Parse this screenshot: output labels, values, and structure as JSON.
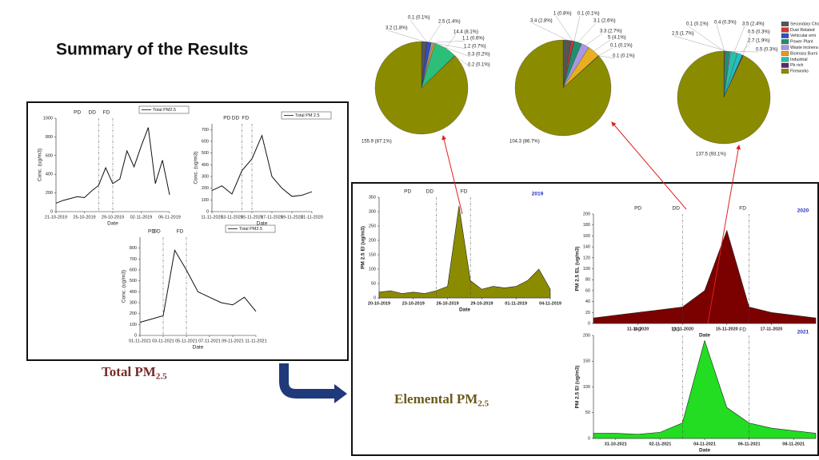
{
  "title": "Summary of the Results",
  "total_label": {
    "text": "Total PM",
    "sub": "2.5"
  },
  "elemental_label": {
    "text": "Elemental PM",
    "sub": "2.5"
  },
  "legend": {
    "items": [
      {
        "name": "Secondary Cho",
        "color": "#555555"
      },
      {
        "name": "Dust Related",
        "color": "#e03030"
      },
      {
        "name": "Vehicular emi",
        "color": "#3050c0"
      },
      {
        "name": "Power Plant",
        "color": "#1f8f6f"
      },
      {
        "name": "Waste incinera",
        "color": "#a898e0"
      },
      {
        "name": "Biomass Burni",
        "color": "#e89a20"
      },
      {
        "name": "Industrial",
        "color": "#2cbfa8"
      },
      {
        "name": "Pb rich",
        "color": "#5a2a6a"
      },
      {
        "name": "Fireworks",
        "color": "#8b8b00"
      }
    ]
  },
  "chart_data": [
    {
      "type": "pie",
      "values": [
        3.2,
        0.1,
        2.5,
        0.3,
        1.1,
        1.2,
        14.4,
        0.2,
        155.9
      ],
      "value_labels": [
        "3.2 (1.8%)",
        "0.1 (0.1%)",
        "2.5 (1.4%)",
        "0.3 (0.2%)",
        "1.1 (0.6%)",
        "1.2 (0.7%)",
        "14.4 (8.1%)",
        "0.2 (0.1%)",
        "155.9 (87.1%)"
      ],
      "colors": [
        "#555555",
        "#e03030",
        "#3050c0",
        "#1f8f6f",
        "#a898e0",
        "#e89a20",
        "#2cbf7a",
        "#5a2a6a",
        "#8b8b00"
      ]
    },
    {
      "type": "pie",
      "values": [
        3.4,
        1,
        0.1,
        3.1,
        3.3,
        5,
        0.1,
        0.1,
        104.3
      ],
      "value_labels": [
        "3.4 (2.8%)",
        "1 (0.8%)",
        "0.1 (0.1%)",
        "3.1 (2.6%)",
        "3.3 (2.7%)",
        "5 (4.1%)",
        "0.1 (0.1%)",
        "0.1 (0.1%)",
        "104.3 (86.7%)"
      ],
      "colors": [
        "#555555",
        "#e03030",
        "#3050c0",
        "#1f8f6f",
        "#a898e0",
        "#e8b020",
        "#2cbfa8",
        "#5a2a6a",
        "#8b8b00"
      ]
    },
    {
      "type": "pie",
      "values": [
        0.1,
        0.4,
        2.5,
        0.5,
        3.5,
        2.7,
        0.5,
        137.5
      ],
      "value_labels": [
        "0.1 (0.1%)",
        "0.4 (0.3%)",
        "2.5 (1.7%)",
        "0.5 (0.3%)",
        "3.5 (2.4%)",
        "2.7 (1.9%)",
        "0.5 (0.3%)",
        "137.5 (93.1%)"
      ],
      "colors": [
        "#555555",
        "#e03030",
        "#1f8f6f",
        "#a898e0",
        "#2cbfa8",
        "#20c0c0",
        "#5a2a6a",
        "#8b8b00"
      ]
    },
    {
      "type": "line",
      "name": "Total PM2.5",
      "color": "#111111",
      "x": [
        "21-10-2019",
        "22-10-2019",
        "23-10-2019",
        "24-10-2019",
        "25-10-2019",
        "26-10-2019",
        "27-10-2019",
        "28-10-2019",
        "29-10-2019",
        "30-10-2019",
        "31-10-2019",
        "01-11-2019",
        "02-11-2019",
        "03-11-2019",
        "04-11-2019",
        "05-11-2019",
        "06-11-2019"
      ],
      "values": [
        90,
        120,
        140,
        160,
        150,
        220,
        280,
        470,
        300,
        350,
        650,
        480,
        700,
        900,
        300,
        550,
        180
      ],
      "xticks": [
        "21-10-2019",
        "25-10-2019",
        "29-10-2019",
        "02-11-2019",
        "06-11-2019"
      ],
      "ylim": [
        0,
        1000
      ],
      "yticks": [
        0,
        200,
        400,
        600,
        800,
        1000
      ],
      "xlabel": "Date",
      "ylabel": "Conc. (ug/m3)",
      "annotations": [
        {
          "text": "PD"
        },
        {
          "text": "DD",
          "x": "27-10-2019"
        },
        {
          "text": "FD",
          "x": "29-10-2019"
        }
      ]
    },
    {
      "type": "line",
      "name": "Total PM 2.5",
      "color": "#111111",
      "x": [
        "11-11-2020",
        "12-11-2020",
        "13-11-2020",
        "14-11-2020",
        "15-11-2020",
        "16-11-2020",
        "17-11-2020",
        "18-11-2020",
        "19-11-2020",
        "20-11-2020",
        "21-11-2020"
      ],
      "values": [
        180,
        220,
        150,
        350,
        450,
        650,
        300,
        200,
        130,
        140,
        170
      ],
      "xticks": [
        "11-11-2020",
        "13-11-2020",
        "15-11-2020",
        "17-11-2020",
        "19-11-2020",
        "21-11-2020"
      ],
      "ylim": [
        0,
        750
      ],
      "yticks": [
        0,
        100,
        200,
        300,
        400,
        500,
        600,
        700
      ],
      "xlabel": "Date",
      "ylabel": "Conc. (ug/m3)",
      "annotations": [
        {
          "text": "PD"
        },
        {
          "text": "DD",
          "x": "14-11-2020"
        },
        {
          "text": "FD",
          "x": "15-11-2020"
        }
      ]
    },
    {
      "type": "line",
      "name": "Total PM2.5",
      "color": "#111111",
      "x": [
        "01-11-2021",
        "02-11-2021",
        "03-11-2021",
        "04-11-2021",
        "05-11-2021",
        "06-11-2021",
        "07-11-2021",
        "08-11-2021",
        "09-11-2021",
        "10-11-2021",
        "11-11-2021"
      ],
      "values": [
        120,
        150,
        180,
        780,
        600,
        400,
        350,
        300,
        280,
        350,
        220
      ],
      "xticks": [
        "01-11-2021",
        "03-11-2021",
        "05-11-2021",
        "07-11-2021",
        "09-11-2021",
        "11-11-2021"
      ],
      "ylim": [
        0,
        900
      ],
      "yticks": [
        0,
        100,
        200,
        300,
        400,
        500,
        600,
        700,
        800
      ],
      "xlabel": "Date",
      "ylabel": "Conc. (ug/m3)",
      "annotations": [
        {
          "text": "PD"
        },
        {
          "text": "DD",
          "x": "03-11-2021"
        },
        {
          "text": "FD",
          "x": "05-11-2021"
        }
      ]
    },
    {
      "type": "area",
      "title": "2019",
      "color": "#8b8b00",
      "x": [
        "20-10-2019",
        "21-10-2019",
        "22-10-2019",
        "23-10-2019",
        "24-10-2019",
        "25-10-2019",
        "26-10-2019",
        "27-10-2019",
        "28-10-2019",
        "29-10-2019",
        "30-10-2019",
        "31-10-2019",
        "01-11-2019",
        "02-11-2019",
        "03-11-2019",
        "04-11-2019"
      ],
      "values": [
        20,
        25,
        15,
        20,
        15,
        25,
        40,
        320,
        60,
        30,
        40,
        35,
        40,
        60,
        100,
        30
      ],
      "xticks": [
        "20-10-2019",
        "23-10-2019",
        "26-10-2019",
        "29-10-2019",
        "01-11-2019",
        "04-11-2019"
      ],
      "ylim": [
        0,
        350
      ],
      "yticks": [
        0,
        50,
        100,
        150,
        200,
        250,
        300,
        350
      ],
      "xlabel": "Date",
      "ylabel": "PM 2.5 El (ug/m3)",
      "annotations": [
        {
          "text": "PD"
        },
        {
          "text": "DD",
          "x": "25-10-2019"
        },
        {
          "text": "FD",
          "x": "28-10-2019"
        }
      ]
    },
    {
      "type": "area",
      "title": "2020",
      "color": "#7b0000",
      "x": [
        "09-11-2020",
        "10-11-2020",
        "11-11-2020",
        "12-11-2020",
        "13-11-2020",
        "14-11-2020",
        "15-11-2020",
        "16-11-2020",
        "17-11-2020",
        "18-11-2020",
        "19-11-2020"
      ],
      "values": [
        10,
        15,
        20,
        25,
        30,
        60,
        170,
        30,
        20,
        15,
        10
      ],
      "xticks": [
        "11-11-2020",
        "13-11-2020",
        "15-11-2020",
        "17-11-2020"
      ],
      "ylim": [
        0,
        200
      ],
      "yticks": [
        0,
        20,
        40,
        60,
        80,
        100,
        120,
        140,
        160,
        180,
        200
      ],
      "xlabel": "Date",
      "ylabel": "PM 2.5 EL (ug/m3)",
      "annotations": [
        {
          "text": "PD"
        },
        {
          "text": "DD",
          "x": "13-11-2020"
        },
        {
          "text": "FD",
          "x": "16-11-2020"
        }
      ]
    },
    {
      "type": "area",
      "title": "2021",
      "color": "#22dd22",
      "x": [
        "30-10-2021",
        "31-10-2021",
        "01-11-2021",
        "02-11-2021",
        "03-11-2021",
        "04-11-2021",
        "05-11-2021",
        "06-11-2021",
        "07-11-2021",
        "08-11-2021",
        "09-11-2021"
      ],
      "values": [
        10,
        10,
        8,
        12,
        30,
        190,
        60,
        30,
        20,
        15,
        10
      ],
      "xticks": [
        "31-10-2021",
        "02-11-2021",
        "04-11-2021",
        "06-11-2021",
        "08-11-2021"
      ],
      "ylim": [
        0,
        200
      ],
      "yticks": [
        0,
        50,
        100,
        150,
        200
      ],
      "xlabel": "Date",
      "ylabel": "PM 2.5 El (ug/m3)",
      "annotations": [
        {
          "text": "PD"
        },
        {
          "text": "DD",
          "x": "03-11-2021"
        },
        {
          "text": "FD",
          "x": "06-11-2021"
        }
      ]
    }
  ]
}
